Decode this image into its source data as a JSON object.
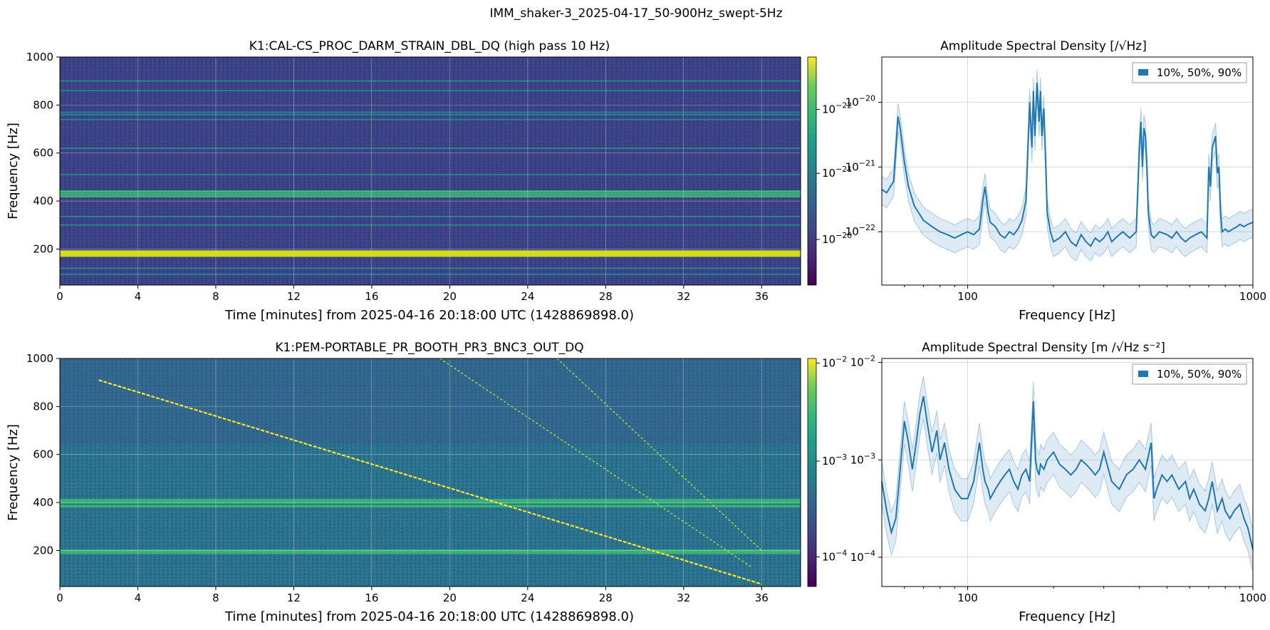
{
  "figure": {
    "suptitle": "IMM_shaker-3_2025-04-17_50-900Hz_swept-5Hz"
  },
  "chart_data": [
    {
      "type": "heatmap",
      "title": "K1:CAL-CS_PROC_DARM_STRAIN_DBL_DQ (high pass 10 Hz)",
      "xlabel": "Time [minutes] from 2025-04-16 20:18:00 UTC (1428869898.0)",
      "ylabel": "Frequency [Hz]",
      "xlim": [
        0,
        38
      ],
      "ylim": [
        50,
        1000
      ],
      "xticks": [
        0,
        4,
        8,
        12,
        16,
        20,
        24,
        28,
        32,
        36
      ],
      "yticks": [
        200,
        400,
        600,
        800,
        1000
      ],
      "colorbar": {
        "scale": "log",
        "ticks": [
          "10^-22",
          "10^-21",
          "10^-20"
        ]
      },
      "grid": true,
      "colormap": "viridis",
      "features": {
        "strong_lines_hz": [
          172,
          178,
          185,
          190,
          420,
          430,
          440
        ],
        "moderate_lines_hz": [
          95,
          120,
          300,
          335,
          510,
          620,
          740,
          760,
          770,
          860,
          900
        ]
      }
    },
    {
      "type": "line",
      "title": "Amplitude Spectral Density [/√Hz]",
      "xlabel": "Frequency [Hz]",
      "ylabel": "",
      "xscale": "log",
      "yscale": "log",
      "xlim": [
        50,
        1000
      ],
      "ylim": [
        1.5e-23,
        5e-20
      ],
      "xticks": [
        100,
        1000
      ],
      "yticks": [
        "10^-22",
        "10^-21",
        "10^-20"
      ],
      "legend": {
        "label": "10%, 50%, 90%",
        "placement": "top-right"
      },
      "grid": true,
      "series": [
        {
          "name": "10%, 50%, 90%",
          "x": [
            50,
            52,
            55,
            57,
            58,
            60,
            62,
            65,
            70,
            75,
            80,
            85,
            90,
            95,
            100,
            105,
            110,
            113,
            115,
            118,
            120,
            125,
            130,
            135,
            140,
            145,
            150,
            155,
            160,
            165,
            168,
            170,
            172,
            175,
            178,
            180,
            182,
            185,
            188,
            190,
            195,
            200,
            210,
            220,
            230,
            240,
            250,
            260,
            270,
            280,
            290,
            300,
            310,
            320,
            330,
            340,
            350,
            370,
            390,
            400,
            405,
            410,
            415,
            420,
            425,
            430,
            440,
            450,
            470,
            500,
            520,
            540,
            560,
            580,
            600,
            630,
            660,
            690,
            700,
            710,
            720,
            740,
            750,
            760,
            770,
            780,
            800,
            820,
            850,
            880,
            900,
            930,
            960,
            1000
          ],
          "median": [
            4.5e-22,
            4e-22,
            6e-22,
            6e-21,
            4e-21,
            1.2e-21,
            5e-22,
            2.5e-22,
            1.5e-22,
            1.2e-22,
            1e-22,
            9e-23,
            8e-23,
            9e-23,
            1e-22,
            9e-23,
            1.1e-22,
            3e-22,
            5e-22,
            2e-22,
            1.4e-22,
            1.2e-22,
            9e-23,
            8e-23,
            1e-22,
            9e-23,
            1.1e-22,
            1.5e-22,
            3e-22,
            1e-20,
            2e-21,
            1.5e-20,
            3e-21,
            2e-20,
            5e-21,
            1.5e-20,
            3e-21,
            8e-21,
            1e-21,
            2e-22,
            1e-22,
            7e-23,
            8e-23,
            1e-22,
            7e-23,
            6e-23,
            9e-23,
            7e-23,
            6e-23,
            8e-23,
            7e-23,
            8e-23,
            1e-22,
            7e-23,
            8e-23,
            9e-23,
            1e-22,
            8e-23,
            1e-22,
            2e-21,
            5e-21,
            1e-21,
            4e-21,
            3e-21,
            1e-21,
            2e-22,
            9e-23,
            8e-23,
            1e-22,
            9e-23,
            8e-23,
            1e-22,
            8e-23,
            7e-23,
            8e-23,
            9e-23,
            1e-22,
            8e-23,
            1e-21,
            5e-22,
            2e-21,
            3e-21,
            8e-22,
            1e-21,
            2e-22,
            1e-22,
            1.1e-22,
            1e-22,
            1.1e-22,
            1.2e-22,
            1.3e-22,
            1.2e-22,
            1.3e-22,
            1.4e-22
          ]
        }
      ]
    },
    {
      "type": "heatmap",
      "title": "K1:PEM-PORTABLE_PR_BOOTH_PR3_BNC3_OUT_DQ",
      "xlabel": "Time [minutes] from 2025-04-16 20:18:00 UTC (1428869898.0)",
      "ylabel": "Frequency [Hz]",
      "xlim": [
        0,
        38
      ],
      "ylim": [
        50,
        1000
      ],
      "xticks": [
        0,
        4,
        8,
        12,
        16,
        20,
        24,
        28,
        32,
        36
      ],
      "yticks": [
        200,
        400,
        600,
        800,
        1000
      ],
      "colorbar": {
        "scale": "log",
        "ticks": [
          "10^-4",
          "10^-3",
          "10^-2"
        ]
      },
      "grid": true,
      "colormap": "viridis",
      "features": {
        "sweep_fundamental": {
          "t_start_min": 2,
          "f_start_hz": 910,
          "t_end_min": 36,
          "f_end_hz": 60
        },
        "sweep_harmonics": [
          {
            "t_start_min": 19.5,
            "f_start_hz": 1000,
            "t_end_min": 35.5,
            "f_end_hz": 130
          },
          {
            "t_start_min": 25.5,
            "f_start_hz": 1000,
            "t_end_min": 36,
            "f_end_hz": 200
          }
        ],
        "strong_lines_hz": [
          190,
          200,
          385,
          400,
          410
        ]
      }
    },
    {
      "type": "line",
      "title": "Amplitude Spectral Density [m /√Hz s⁻²]",
      "xlabel": "Frequency [Hz]",
      "ylabel": "",
      "xscale": "log",
      "yscale": "log",
      "xlim": [
        50,
        1000
      ],
      "ylim": [
        5e-05,
        0.011
      ],
      "xticks": [
        100,
        1000
      ],
      "yticks": [
        "10^-4",
        "10^-3",
        "10^-2"
      ],
      "legend": {
        "label": "10%, 50%, 90%",
        "placement": "top-right"
      },
      "grid": true,
      "series": [
        {
          "name": "10%, 50%, 90%",
          "x": [
            50,
            52,
            54,
            56,
            58,
            60,
            62,
            64,
            66,
            68,
            70,
            72,
            75,
            78,
            80,
            83,
            86,
            90,
            95,
            100,
            105,
            110,
            113,
            115,
            118,
            120,
            125,
            130,
            135,
            140,
            145,
            150,
            155,
            160,
            165,
            170,
            173,
            175,
            178,
            180,
            185,
            190,
            200,
            210,
            220,
            230,
            240,
            250,
            260,
            270,
            280,
            290,
            300,
            320,
            340,
            360,
            380,
            400,
            420,
            440,
            450,
            460,
            480,
            500,
            520,
            550,
            580,
            600,
            620,
            650,
            680,
            700,
            720,
            750,
            780,
            800,
            830,
            860,
            900,
            930,
            960,
            1000
          ],
          "median": [
            0.0006,
            0.0003,
            0.00018,
            0.00025,
            0.0008,
            0.0025,
            0.0015,
            0.0008,
            0.0015,
            0.003,
            0.0045,
            0.0025,
            0.0012,
            0.002,
            0.001,
            0.0015,
            0.0008,
            0.0005,
            0.0004,
            0.0004,
            0.0006,
            0.0015,
            0.0008,
            0.0006,
            0.0005,
            0.0004,
            0.0005,
            0.0006,
            0.0007,
            0.0008,
            0.0006,
            0.0005,
            0.0007,
            0.0008,
            0.0006,
            0.004,
            0.001,
            0.0008,
            0.0007,
            0.0009,
            0.0008,
            0.001,
            0.0012,
            0.0009,
            0.0008,
            0.0007,
            0.0008,
            0.001,
            0.0009,
            0.0008,
            0.0007,
            0.0008,
            0.0012,
            0.0006,
            0.0005,
            0.0007,
            0.0008,
            0.001,
            0.0008,
            0.0015,
            0.0004,
            0.0005,
            0.0007,
            0.0006,
            0.0007,
            0.0005,
            0.0006,
            0.0004,
            0.0005,
            0.00035,
            0.0003,
            0.0004,
            0.0006,
            0.0003,
            0.0004,
            0.0003,
            0.00025,
            0.0003,
            0.00035,
            0.00025,
            0.0002,
            0.00012
          ]
        }
      ]
    }
  ]
}
